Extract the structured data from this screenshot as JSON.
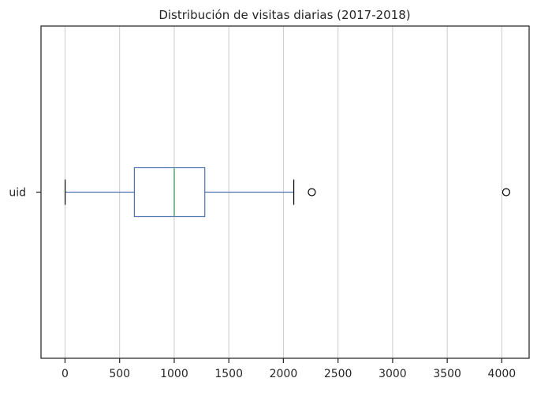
{
  "chart_data": {
    "type": "boxplot",
    "orientation": "horizontal",
    "title": "Distribución de visitas diarias (2017-2018)",
    "xlabel": "",
    "ylabel": "",
    "categories": [
      "uid"
    ],
    "xlim": [
      -220,
      4250
    ],
    "xticks": [
      0,
      500,
      1000,
      1500,
      2000,
      2500,
      3000,
      3500,
      4000
    ],
    "grid": "vertical",
    "legend": "none",
    "boxes": [
      {
        "label": "uid",
        "whisker_low": 1,
        "q1": 635,
        "median": 1000,
        "q3": 1280,
        "whisker_high": 2095,
        "outliers": [
          2260,
          4040
        ]
      }
    ],
    "colors": {
      "box": "#4c72b0",
      "median": "#55a868",
      "caps": "#000000",
      "grid": "#cccccc",
      "axis": "#262626"
    }
  }
}
